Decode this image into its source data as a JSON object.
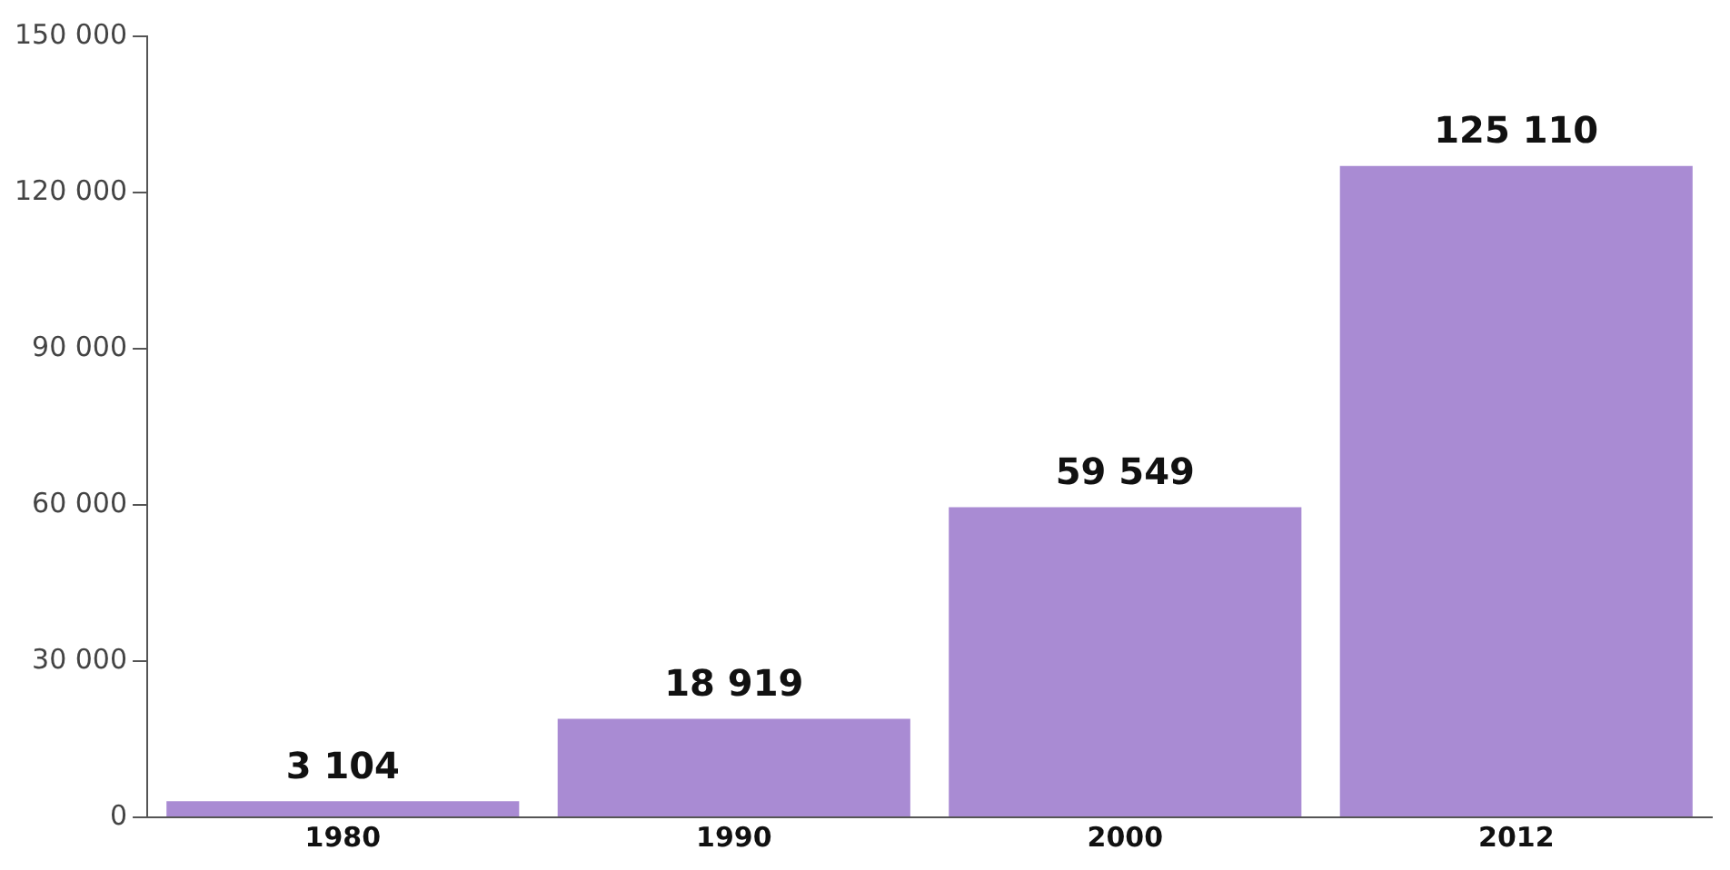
{
  "chart_data": {
    "type": "bar",
    "categories": [
      "1980",
      "1990",
      "2000",
      "2012"
    ],
    "values": [
      3104,
      18919,
      59549,
      125110
    ],
    "color": "#a98bd3",
    "ylim": [
      0,
      150000
    ],
    "yticks": [
      {
        "value": 0,
        "label": "0"
      },
      {
        "value": 30000,
        "label": "30 000"
      },
      {
        "value": 60000,
        "label": "60 000"
      },
      {
        "value": 90000,
        "label": "90 000"
      },
      {
        "value": 120000,
        "label": "120 000"
      },
      {
        "value": 150000,
        "label": "150 000"
      }
    ],
    "value_labels": [
      "3 104",
      "18 919",
      "59 549",
      "125 110"
    ],
    "grid": false,
    "legend": false
  }
}
